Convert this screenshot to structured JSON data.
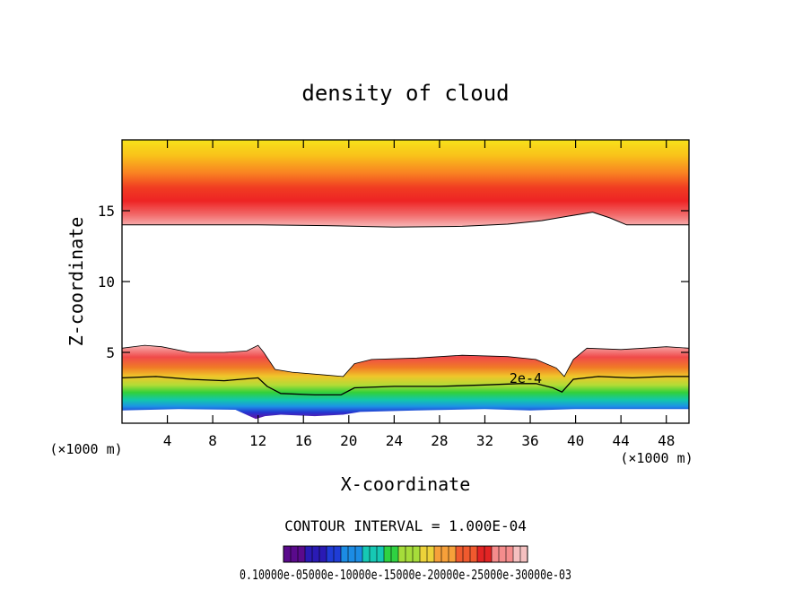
{
  "chart_data": {
    "type": "heatmap",
    "title": "density of cloud",
    "xlabel": "X-coordinate",
    "ylabel": "Z-coordinate",
    "x_unit_left": "(×1000 m)",
    "x_unit_right": "(×1000 m)",
    "xlim": [
      0,
      50
    ],
    "ylim": [
      0,
      20
    ],
    "x_ticks": [
      4,
      8,
      12,
      16,
      20,
      24,
      28,
      32,
      36,
      40,
      44,
      48
    ],
    "y_ticks": [
      5,
      10,
      15
    ],
    "contour_interval_text": "CONTOUR INTERVAL = 1.000E-04",
    "contour_label": "2e-4",
    "contour_label_x": 35.6,
    "contour_label_z": 2.85,
    "colorbar_labels_text": "0.10000e-05000e-10000e-15000e-20000e-25000e-30000e-03",
    "colorbar_colors": [
      "#5a0a8c",
      "#2a1ab4",
      "#1f3cd6",
      "#1c8ce4",
      "#16c8b4",
      "#2fd242",
      "#a6dc3a",
      "#ecd23a",
      "#f6a03a",
      "#f05a2e",
      "#e22424",
      "#f58c8c",
      "#f5c0c0"
    ],
    "upper_layer": {
      "top_z": 20,
      "base": [
        [
          0,
          14.0
        ],
        [
          6,
          14.0
        ],
        [
          12,
          14.0
        ],
        [
          18,
          13.95
        ],
        [
          24,
          13.85
        ],
        [
          30,
          13.9
        ],
        [
          34,
          14.05
        ],
        [
          37,
          14.3
        ],
        [
          40,
          14.7
        ],
        [
          41.5,
          14.9
        ],
        [
          43,
          14.5
        ],
        [
          44.5,
          14.0
        ],
        [
          50,
          14.0
        ]
      ]
    },
    "lower_layer": {
      "top": [
        [
          0,
          5.3
        ],
        [
          2,
          5.5
        ],
        [
          3.5,
          5.4
        ],
        [
          6,
          5.0
        ],
        [
          9,
          5.0
        ],
        [
          11,
          5.1
        ],
        [
          12,
          5.5
        ],
        [
          12.5,
          5.0
        ],
        [
          13.5,
          3.8
        ],
        [
          15,
          3.6
        ],
        [
          18,
          3.4
        ],
        [
          19.5,
          3.3
        ],
        [
          20.5,
          4.2
        ],
        [
          22,
          4.5
        ],
        [
          26,
          4.6
        ],
        [
          30,
          4.8
        ],
        [
          34,
          4.7
        ],
        [
          36.5,
          4.5
        ],
        [
          38.3,
          3.9
        ],
        [
          39,
          3.3
        ],
        [
          39.8,
          4.5
        ],
        [
          41,
          5.3
        ],
        [
          44,
          5.2
        ],
        [
          46,
          5.3
        ],
        [
          48,
          5.4
        ],
        [
          50,
          5.3
        ]
      ],
      "contour_2e4": [
        [
          0,
          3.2
        ],
        [
          3,
          3.3
        ],
        [
          6,
          3.1
        ],
        [
          9,
          3.0
        ],
        [
          12,
          3.2
        ],
        [
          12.8,
          2.6
        ],
        [
          14,
          2.1
        ],
        [
          17,
          2.0
        ],
        [
          19.3,
          2.0
        ],
        [
          20.5,
          2.5
        ],
        [
          24,
          2.6
        ],
        [
          28,
          2.6
        ],
        [
          32,
          2.7
        ],
        [
          35,
          2.8
        ],
        [
          36.5,
          2.8
        ],
        [
          38,
          2.5
        ],
        [
          38.8,
          2.2
        ],
        [
          39.8,
          3.1
        ],
        [
          42,
          3.3
        ],
        [
          45,
          3.2
        ],
        [
          48,
          3.3
        ],
        [
          50,
          3.3
        ]
      ],
      "bottom": [
        [
          0,
          0.9
        ],
        [
          5,
          1.0
        ],
        [
          10,
          0.95
        ],
        [
          11.8,
          0.3
        ],
        [
          12.6,
          0.5
        ],
        [
          14,
          0.6
        ],
        [
          17,
          0.5
        ],
        [
          19.5,
          0.6
        ],
        [
          21,
          0.8
        ],
        [
          26,
          0.9
        ],
        [
          32,
          1.0
        ],
        [
          36,
          0.9
        ],
        [
          40,
          1.0
        ],
        [
          44,
          1.0
        ],
        [
          50,
          1.0
        ]
      ]
    }
  }
}
